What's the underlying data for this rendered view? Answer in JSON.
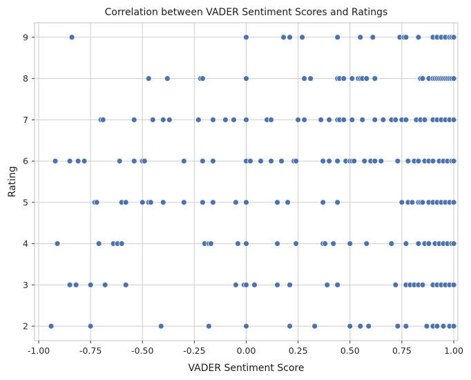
{
  "chart_data": {
    "type": "scatter",
    "title": "Correlation between VADER Sentiment Scores and Ratings",
    "xlabel": "VADER Sentiment Score",
    "ylabel": "Rating",
    "xlim": [
      -1.02,
      1.02
    ],
    "ylim": [
      1.65,
      9.35
    ],
    "xticks": [
      "-1.00",
      "-0.75",
      "-0.50",
      "-0.25",
      "0.00",
      "0.25",
      "0.50",
      "0.75",
      "1.00"
    ],
    "yticks": [
      "2",
      "3",
      "4",
      "5",
      "6",
      "7",
      "8",
      "9"
    ],
    "grid": true,
    "color": "#4c72b0",
    "points": {
      "9": [
        -0.84,
        0.0,
        0.18,
        0.21,
        0.27,
        0.44,
        0.55,
        0.61,
        0.74,
        0.76,
        0.77,
        0.83,
        0.9,
        0.92,
        0.94,
        0.96,
        0.98,
        0.99,
        1.0
      ],
      "8": [
        -0.47,
        -0.38,
        -0.22,
        -0.21,
        0.0,
        0.28,
        0.31,
        0.44,
        0.45,
        0.47,
        0.51,
        0.54,
        0.55,
        0.56,
        0.58,
        0.62,
        0.84,
        0.85,
        0.88,
        0.9,
        0.91,
        0.92,
        0.93,
        0.94,
        0.95,
        0.96,
        0.97,
        0.98,
        0.99,
        1.0
      ],
      "7": [
        -0.7,
        -0.69,
        -0.54,
        -0.45,
        -0.4,
        -0.37,
        -0.23,
        -0.16,
        -0.1,
        -0.06,
        0.0,
        0.1,
        0.12,
        0.25,
        0.28,
        0.36,
        0.4,
        0.44,
        0.45,
        0.47,
        0.51,
        0.56,
        0.62,
        0.66,
        0.7,
        0.72,
        0.75,
        0.77,
        0.82,
        0.84,
        0.86,
        0.9,
        0.92,
        0.94,
        0.96,
        0.98,
        1.0
      ],
      "6": [
        -0.92,
        -0.85,
        -0.81,
        -0.78,
        -0.61,
        -0.54,
        -0.5,
        -0.49,
        -0.3,
        -0.21,
        -0.16,
        0.0,
        0.02,
        0.07,
        0.12,
        0.17,
        0.23,
        0.24,
        0.37,
        0.4,
        0.44,
        0.48,
        0.5,
        0.51,
        0.52,
        0.57,
        0.6,
        0.62,
        0.65,
        0.73,
        0.78,
        0.81,
        0.83,
        0.86,
        0.88,
        0.9,
        0.93,
        0.95,
        0.97,
        0.99,
        1.0
      ],
      "5": [
        -0.73,
        -0.72,
        -0.6,
        -0.58,
        -0.5,
        -0.47,
        -0.46,
        -0.4,
        -0.3,
        -0.21,
        -0.16,
        -0.05,
        0.0,
        0.15,
        0.2,
        0.37,
        0.44,
        0.75,
        0.78,
        0.8,
        0.83,
        0.84,
        0.85,
        0.88,
        0.9,
        0.92,
        0.94,
        0.96,
        0.98,
        1.0
      ],
      "4": [
        -0.91,
        -0.71,
        -0.64,
        -0.62,
        -0.6,
        -0.2,
        -0.18,
        -0.17,
        -0.04,
        0.0,
        0.15,
        0.24,
        0.37,
        0.38,
        0.42,
        0.5,
        0.58,
        0.7,
        0.77,
        0.83,
        0.86,
        0.88,
        0.91,
        0.93,
        0.95,
        0.97,
        0.99,
        1.0
      ],
      "3": [
        -0.85,
        -0.82,
        -0.75,
        -0.68,
        -0.58,
        -0.05,
        -0.01,
        0.0,
        0.04,
        0.15,
        0.21,
        0.39,
        0.44,
        0.72,
        0.77,
        0.79,
        0.81,
        0.83,
        0.85,
        0.9,
        0.92,
        0.94,
        0.96,
        0.98,
        1.0
      ],
      "2": [
        -0.94,
        -0.75,
        -0.41,
        -0.18,
        0.0,
        0.21,
        0.33,
        0.5,
        0.55,
        0.59,
        0.73,
        0.77,
        0.87,
        0.9,
        0.92,
        0.95,
        0.98,
        1.0
      ]
    }
  }
}
